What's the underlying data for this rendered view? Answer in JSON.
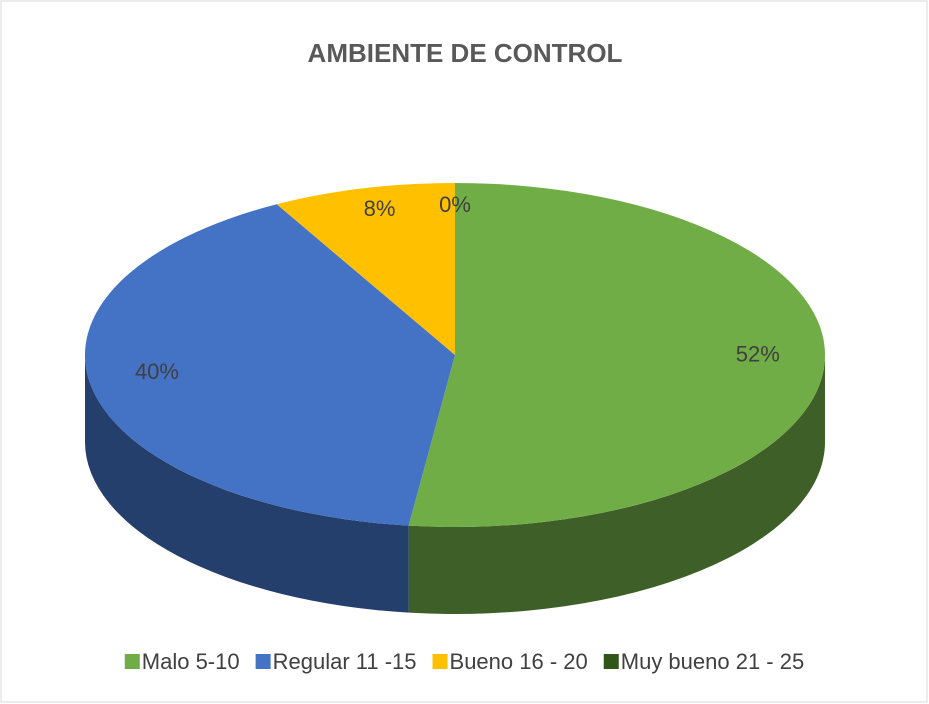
{
  "chart_data": {
    "type": "pie",
    "title": "AMBIENTE DE CONTROL",
    "categories": [
      "Malo 5-10",
      "Regular 11 -15",
      "Bueno 16 - 20",
      "Muy bueno 21 - 25"
    ],
    "values": [
      52,
      40,
      8,
      0
    ],
    "value_labels": [
      "52%",
      "40%",
      "8%",
      "0%"
    ],
    "colors": [
      "#70ad47",
      "#4472c4",
      "#ffc000",
      "#2f5519"
    ],
    "legend": "bottom"
  }
}
